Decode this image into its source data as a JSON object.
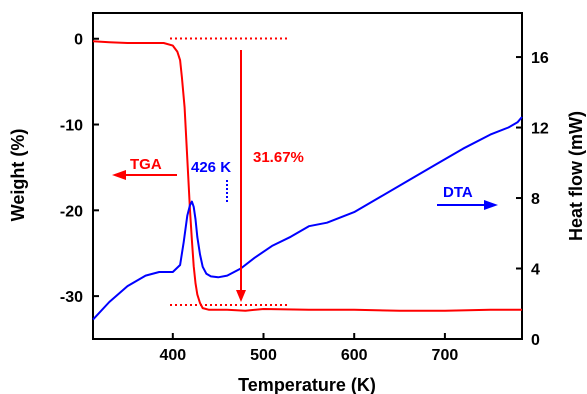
{
  "chart_data": {
    "type": "line",
    "xlabel": "Temperature  (K)",
    "ylabel_left": "Weight (%)",
    "ylabel_right": "Heat flow (mW)",
    "xlim": [
      312,
      785
    ],
    "ylim_left": [
      -35,
      3
    ],
    "ylim_right": [
      0,
      18.5
    ],
    "x_ticks": [
      400,
      500,
      600,
      700
    ],
    "y_left_ticks": [
      0,
      -10,
      -20,
      -30
    ],
    "y_right_ticks": [
      0,
      4,
      8,
      12,
      16
    ],
    "grid": false,
    "colors": {
      "tga": "#ff0000",
      "dta": "#0000ff",
      "axis": "#000000"
    },
    "series": [
      {
        "name": "TGA",
        "axis": "left",
        "x": [
          312,
          330,
          350,
          370,
          390,
          400,
          405,
          408,
          410,
          413,
          415,
          417,
          419,
          421,
          423,
          425,
          427,
          430,
          433,
          440,
          460,
          480,
          500,
          550,
          600,
          650,
          700,
          750,
          785
        ],
        "y": [
          -0.3,
          -0.4,
          -0.5,
          -0.5,
          -0.5,
          -0.8,
          -1.5,
          -2.5,
          -4.5,
          -8.0,
          -12.0,
          -16.0,
          -20.0,
          -23.5,
          -26.5,
          -28.5,
          -29.8,
          -30.8,
          -31.4,
          -31.6,
          -31.6,
          -31.7,
          -31.5,
          -31.6,
          -31.6,
          -31.7,
          -31.7,
          -31.6,
          -31.6
        ]
      },
      {
        "name": "DTA",
        "axis": "right",
        "x": [
          312,
          330,
          350,
          370,
          385,
          400,
          408,
          412,
          416,
          419,
          421,
          423,
          425,
          427,
          430,
          433,
          437,
          442,
          450,
          460,
          475,
          490,
          510,
          530,
          550,
          570,
          600,
          630,
          660,
          690,
          720,
          750,
          770,
          780,
          785
        ],
        "y": [
          1.1,
          2.1,
          3.0,
          3.6,
          3.8,
          3.8,
          4.2,
          5.5,
          7.0,
          7.6,
          7.8,
          7.5,
          6.8,
          5.8,
          4.8,
          4.1,
          3.7,
          3.55,
          3.5,
          3.6,
          4.0,
          4.6,
          5.3,
          5.8,
          6.4,
          6.6,
          7.2,
          8.1,
          9.0,
          9.9,
          10.8,
          11.6,
          12.0,
          12.3,
          12.6
        ]
      }
    ],
    "annotations": {
      "tga_label": "TGA",
      "dta_label": "DTA",
      "peak_label": "426 K",
      "loss_label": "31.67%"
    }
  }
}
